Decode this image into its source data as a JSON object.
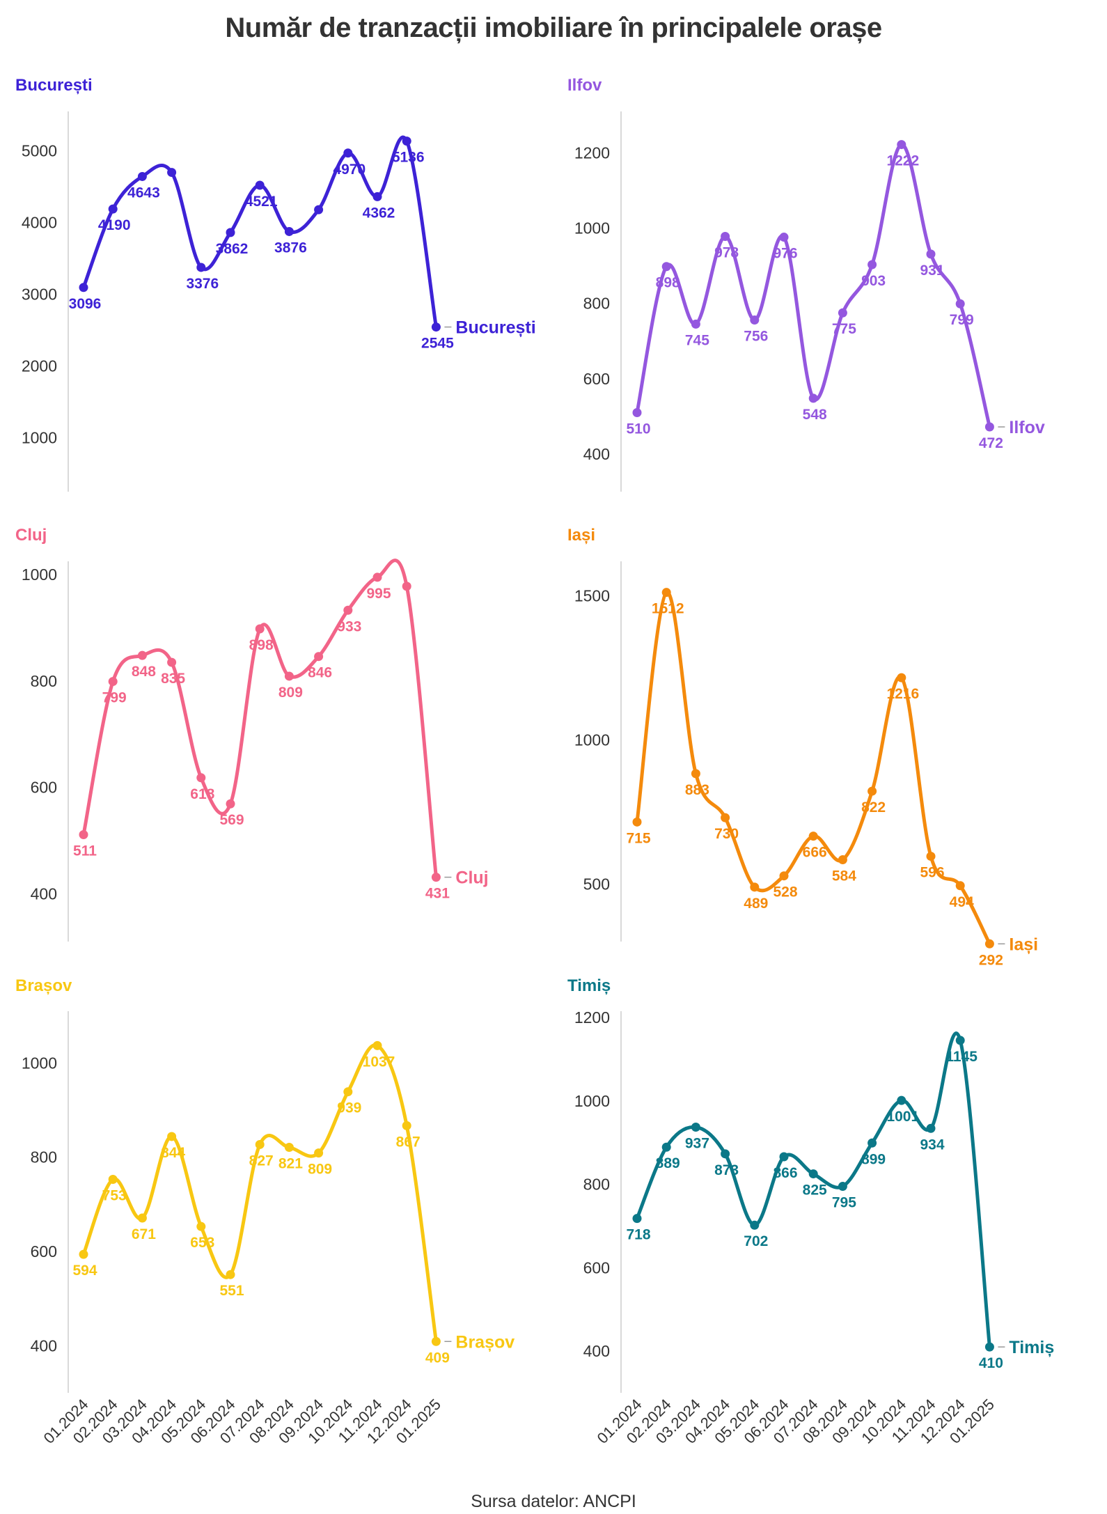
{
  "title": "Număr de tranzacții imobiliare în principalele orașe",
  "source": "Sursa datelor: ANCPI",
  "chart_data": [
    {
      "type": "line",
      "title": "București",
      "color": "#3d22d6",
      "x": [
        "01.2024",
        "02.2024",
        "03.2024",
        "04.2024",
        "05.2024",
        "06.2024",
        "07.2024",
        "08.2024",
        "09.2024",
        "10.2024",
        "11.2024",
        "12.2024",
        "01.2025"
      ],
      "values": [
        3096,
        4190,
        4643,
        4700,
        3376,
        3862,
        4521,
        3876,
        4180,
        4970,
        4362,
        5136,
        2545
      ],
      "labels": [
        "3096",
        "4190",
        "4643",
        "",
        "3376",
        "3862",
        "4521",
        "3876",
        "",
        "4970",
        "4362",
        "5136",
        "2545"
      ],
      "end_label": "București",
      "yticks": [
        1000,
        2000,
        3000,
        4000,
        5000
      ],
      "ylim": [
        250,
        5550
      ],
      "xlabels_shown": false
    },
    {
      "type": "line",
      "title": "Ilfov",
      "color": "#9457df",
      "x": [
        "01.2024",
        "02.2024",
        "03.2024",
        "04.2024",
        "05.2024",
        "06.2024",
        "07.2024",
        "08.2024",
        "09.2024",
        "10.2024",
        "11.2024",
        "12.2024",
        "01.2025"
      ],
      "values": [
        510,
        898,
        745,
        978,
        756,
        976,
        548,
        775,
        903,
        1222,
        931,
        799,
        472
      ],
      "labels": [
        "510",
        "898",
        "745",
        "978",
        "756",
        "976",
        "548",
        "775",
        "903",
        "1222",
        "931",
        "799",
        "472"
      ],
      "end_label": "Ilfov",
      "yticks": [
        400,
        600,
        800,
        1000,
        1200
      ],
      "ylim": [
        300,
        1310
      ],
      "xlabels_shown": false
    },
    {
      "type": "line",
      "title": "Cluj",
      "color": "#f26488",
      "x": [
        "01.2024",
        "02.2024",
        "03.2024",
        "04.2024",
        "05.2024",
        "06.2024",
        "07.2024",
        "08.2024",
        "09.2024",
        "10.2024",
        "11.2024",
        "12.2024",
        "01.2025"
      ],
      "values": [
        511,
        799,
        848,
        835,
        618,
        569,
        898,
        809,
        846,
        933,
        995,
        978,
        431
      ],
      "labels": [
        "511",
        "799",
        "848",
        "835",
        "618",
        "569",
        "898",
        "809",
        "846",
        "933",
        "995",
        "",
        "431"
      ],
      "end_label": "Cluj",
      "yticks": [
        400,
        600,
        800,
        1000
      ],
      "ylim": [
        310,
        1025
      ],
      "xlabels_shown": false
    },
    {
      "type": "line",
      "title": "Iași",
      "color": "#f48a0c",
      "x": [
        "01.2024",
        "02.2024",
        "03.2024",
        "04.2024",
        "05.2024",
        "06.2024",
        "07.2024",
        "08.2024",
        "09.2024",
        "10.2024",
        "11.2024",
        "12.2024",
        "01.2025"
      ],
      "values": [
        715,
        1512,
        883,
        730,
        489,
        528,
        666,
        584,
        822,
        1216,
        596,
        494,
        292
      ],
      "labels": [
        "715",
        "1512",
        "883",
        "730",
        "489",
        "528",
        "666",
        "584",
        "822",
        "1216",
        "596",
        "494",
        "292"
      ],
      "end_label": "Iași",
      "yticks": [
        500,
        1000,
        1500
      ],
      "ylim": [
        300,
        1620
      ],
      "xlabels_shown": false
    },
    {
      "type": "line",
      "title": "Brașov",
      "color": "#f8c712",
      "x": [
        "01.2024",
        "02.2024",
        "03.2024",
        "04.2024",
        "05.2024",
        "06.2024",
        "07.2024",
        "08.2024",
        "09.2024",
        "10.2024",
        "11.2024",
        "12.2024",
        "01.2025"
      ],
      "values": [
        594,
        753,
        671,
        844,
        653,
        551,
        827,
        821,
        809,
        939,
        1037,
        867,
        409
      ],
      "labels": [
        "594",
        "753",
        "671",
        "844",
        "653",
        "551",
        "827",
        "821",
        "809",
        "939",
        "1037",
        "867",
        "409"
      ],
      "end_label": "Brașov",
      "yticks": [
        400,
        600,
        800,
        1000
      ],
      "ylim": [
        300,
        1110
      ],
      "xlabels_shown": true
    },
    {
      "type": "line",
      "title": "Timiș",
      "color": "#0b7888",
      "x": [
        "01.2024",
        "02.2024",
        "03.2024",
        "04.2024",
        "05.2024",
        "06.2024",
        "07.2024",
        "08.2024",
        "09.2024",
        "10.2024",
        "11.2024",
        "12.2024",
        "01.2025"
      ],
      "values": [
        718,
        889,
        937,
        873,
        702,
        866,
        825,
        795,
        899,
        1001,
        934,
        1145,
        410
      ],
      "labels": [
        "718",
        "889",
        "937",
        "873",
        "702",
        "866",
        "825",
        "795",
        "899",
        "1001",
        "934",
        "1145",
        "410"
      ],
      "end_label": "Timiș",
      "yticks": [
        400,
        600,
        800,
        1000,
        1200
      ],
      "ylim": [
        300,
        1215
      ],
      "xlabels_shown": true
    }
  ]
}
